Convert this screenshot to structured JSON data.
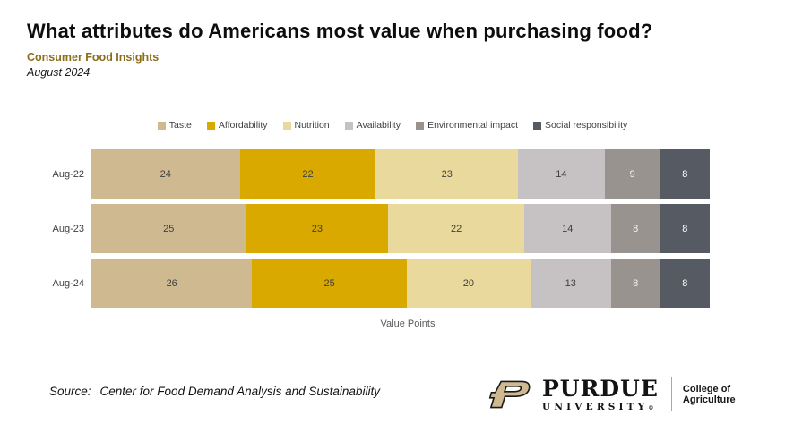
{
  "header": {
    "title": "What attributes do Americans most value when purchasing food?",
    "subtitle": "Consumer Food Insights",
    "date": "August 2024"
  },
  "chart_data": {
    "type": "bar",
    "variant": "stacked-horizontal",
    "title": "What attributes do Americans most value when purchasing food?",
    "categories": [
      "Aug-22",
      "Aug-23",
      "Aug-24"
    ],
    "series": [
      {
        "name": "Taste",
        "color": "#cfb991",
        "label_color": "#3f3f3f",
        "values": [
          24,
          25,
          26
        ]
      },
      {
        "name": "Affordability",
        "color": "#d9a900",
        "label_color": "#3f3f3f",
        "values": [
          22,
          23,
          25
        ]
      },
      {
        "name": "Nutrition",
        "color": "#e9d99c",
        "label_color": "#3f3f3f",
        "values": [
          23,
          22,
          20
        ]
      },
      {
        "name": "Availability",
        "color": "#c6c2c3",
        "label_color": "#3f3f3f",
        "values": [
          14,
          14,
          13
        ]
      },
      {
        "name": "Environmental impact",
        "color": "#999390",
        "label_color": "#f4f4f4",
        "values": [
          9,
          8,
          8
        ]
      },
      {
        "name": "Social responsibility",
        "color": "#555a63",
        "label_color": "#ffffff",
        "values": [
          8,
          8,
          8
        ]
      }
    ],
    "xlabel": "Value Points",
    "xmax": 100,
    "grid": false,
    "legend_position": "top",
    "data_labels": true
  },
  "footer": {
    "source_label": "Source:",
    "source_text": "Center for Food Demand Analysis and Sustainability",
    "logo": {
      "name": "PURDUE",
      "university": "UNIVERSITY",
      "registered": "®",
      "college": "College of Agriculture",
      "p_gold": "#cfb991"
    }
  }
}
